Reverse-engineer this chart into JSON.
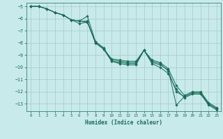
{
  "xlabel": "Humidex (Indice chaleur)",
  "ylabel": "",
  "xlim": [
    -0.5,
    23.5
  ],
  "ylim": [
    -13.6,
    -4.7
  ],
  "yticks": [
    -5,
    -6,
    -7,
    -8,
    -9,
    -10,
    -11,
    -12,
    -13
  ],
  "xticks": [
    0,
    1,
    2,
    3,
    4,
    5,
    6,
    7,
    8,
    9,
    10,
    11,
    12,
    13,
    14,
    15,
    16,
    17,
    18,
    19,
    20,
    21,
    22,
    23
  ],
  "bg_color": "#c8eaea",
  "line_color": "#1a6b5a",
  "grid_color": "#a8c8c8",
  "lines": [
    [
      0,
      -5.0,
      1,
      -5.0,
      2,
      -5.2,
      3,
      -5.5,
      4,
      -5.7,
      5,
      -6.1,
      6,
      -6.2,
      7,
      -5.8,
      8,
      -7.9,
      9,
      -8.4,
      10,
      -9.5,
      11,
      -9.6,
      12,
      -9.7,
      13,
      -9.7,
      14,
      -8.6,
      15,
      -9.6,
      16,
      -9.8,
      17,
      -10.2,
      18,
      -13.1,
      19,
      -12.4,
      20,
      -12.1,
      21,
      -12.1,
      22,
      -13.0,
      23,
      -13.4
    ],
    [
      0,
      -5.0,
      1,
      -5.0,
      2,
      -5.2,
      3,
      -5.5,
      4,
      -5.7,
      5,
      -6.1,
      6,
      -6.2,
      7,
      -6.3,
      8,
      -7.9,
      9,
      -8.4,
      10,
      -9.4,
      11,
      -9.5,
      12,
      -9.6,
      13,
      -9.6,
      14,
      -8.6,
      15,
      -9.5,
      16,
      -9.7,
      17,
      -10.3,
      18,
      -12.0,
      19,
      -12.4,
      20,
      -12.1,
      21,
      -12.1,
      22,
      -13.0,
      23,
      -13.4
    ],
    [
      0,
      -5.0,
      1,
      -5.0,
      2,
      -5.2,
      3,
      -5.5,
      4,
      -5.7,
      5,
      -6.1,
      6,
      -6.4,
      7,
      -6.3,
      8,
      -8.0,
      9,
      -8.5,
      10,
      -9.5,
      11,
      -9.7,
      12,
      -9.8,
      13,
      -9.8,
      14,
      -8.6,
      15,
      -9.7,
      16,
      -10.0,
      17,
      -10.5,
      18,
      -11.8,
      19,
      -12.5,
      20,
      -12.2,
      21,
      -12.2,
      22,
      -13.1,
      23,
      -13.5
    ],
    [
      0,
      -5.0,
      1,
      -5.0,
      2,
      -5.2,
      3,
      -5.5,
      4,
      -5.7,
      5,
      -6.1,
      6,
      -6.2,
      7,
      -6.2,
      8,
      -8.0,
      9,
      -8.5,
      10,
      -9.3,
      11,
      -9.4,
      12,
      -9.5,
      13,
      -9.5,
      14,
      -8.6,
      15,
      -9.4,
      16,
      -9.6,
      17,
      -10.1,
      18,
      -11.5,
      19,
      -12.3,
      20,
      -12.0,
      21,
      -12.0,
      22,
      -12.9,
      23,
      -13.3
    ]
  ]
}
